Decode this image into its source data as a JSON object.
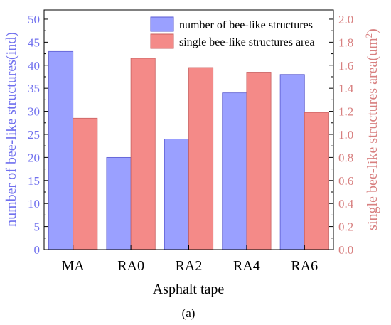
{
  "figure_label": "(a)",
  "chart_data": {
    "type": "bar",
    "xlabel": "Asphalt tape",
    "categories": [
      "MA",
      "RA0",
      "RA2",
      "RA4",
      "RA6"
    ],
    "y_left": {
      "label": "number of bee-like structures(ind)",
      "range": [
        0,
        52
      ],
      "ticks": [
        0,
        5,
        10,
        15,
        20,
        25,
        30,
        35,
        40,
        45,
        50
      ],
      "tick_labels": [
        "0",
        "5",
        "10",
        "15",
        "20",
        "25",
        "30",
        "35",
        "40",
        "45",
        "50"
      ],
      "color": "#7070ee"
    },
    "y_right": {
      "label": "single bee-like structures area(um",
      "label_superscript": "2",
      "label_suffix": ")",
      "range": [
        0,
        2.08
      ],
      "ticks": [
        0,
        0.2,
        0.4,
        0.6,
        0.8,
        1.0,
        1.2,
        1.4,
        1.6,
        1.8,
        2.0
      ],
      "tick_labels": [
        "0.0",
        "0.2",
        "0.4",
        "0.6",
        "0.8",
        "1.0",
        "1.2",
        "1.4",
        "1.6",
        "1.8",
        "2.0"
      ],
      "color": "#d88080"
    },
    "series": [
      {
        "name": "number of bee-like structures",
        "axis": "left",
        "color": "#9aa0ff",
        "values": [
          43,
          20,
          24,
          34,
          38
        ]
      },
      {
        "name": "single bee-like structures area",
        "axis": "right",
        "color": "#f48a88",
        "values": [
          1.14,
          1.66,
          1.58,
          1.54,
          1.19
        ]
      }
    ],
    "legend_position": "top-right"
  }
}
